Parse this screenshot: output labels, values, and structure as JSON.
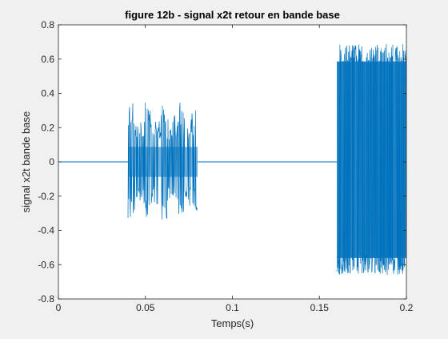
{
  "chart_data": {
    "type": "line",
    "title": "figure 12b - signal x2t retour en bande base",
    "xlabel": "Temps(s)",
    "ylabel": "signal x2t bande base",
    "xlim": [
      0,
      0.2
    ],
    "ylim": [
      -0.8,
      0.8
    ],
    "xticks": [
      0,
      0.05,
      0.1,
      0.15,
      0.2
    ],
    "xtick_labels": [
      "0",
      "0.05",
      "0.1",
      "0.15",
      "0.2"
    ],
    "yticks": [
      -0.8,
      -0.6,
      -0.4,
      -0.2,
      0,
      0.2,
      0.4,
      0.6,
      0.8
    ],
    "ytick_labels": [
      "-0.8",
      "-0.6",
      "-0.4",
      "-0.2",
      "0",
      "0.2",
      "0.4",
      "0.6",
      "0.8"
    ],
    "grid": false,
    "line_color": "#0072bd",
    "series": [
      {
        "segments": [
          {
            "x_start": 0.0,
            "x_end": 0.04,
            "y_min": 0.0,
            "y_max": 0.0
          },
          {
            "x_start": 0.04,
            "x_end": 0.08,
            "y_min": -0.35,
            "y_max": 0.35
          },
          {
            "x_start": 0.08,
            "x_end": 0.16,
            "y_min": 0.0,
            "y_max": 0.0
          },
          {
            "x_start": 0.16,
            "x_end": 0.2,
            "y_min": -0.66,
            "y_max": 0.69
          }
        ]
      }
    ]
  }
}
